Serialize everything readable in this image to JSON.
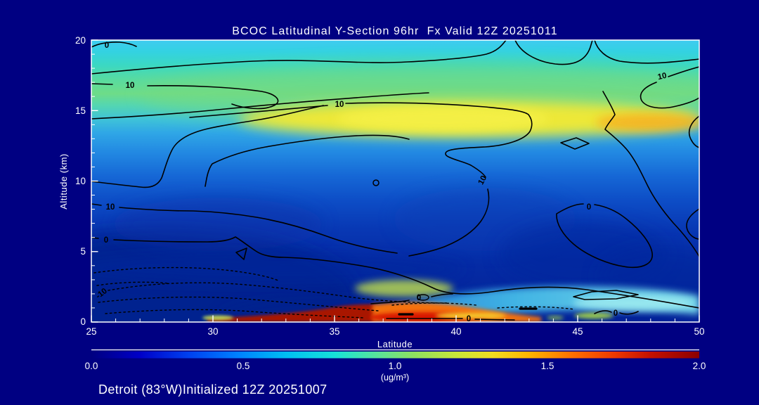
{
  "canvas": {
    "background_color": "#000082",
    "text_color": "#FFFFFF",
    "plot_frame_color": "#FFFFFF"
  },
  "header": {
    "title": "BCOC Latitudinal Y-Section 96hr  Fx Valid 12Z 20251011"
  },
  "footer": {
    "caption": "Detroit (83°W)Initialized 12Z 20251007"
  },
  "axes": {
    "x_label": "Latitude",
    "y_label": "Altitude (km)",
    "x_ticks": [
      "25",
      "30",
      "35",
      "40",
      "45",
      "50"
    ],
    "y_ticks": [
      "0",
      "5",
      "10",
      "15",
      "20"
    ]
  },
  "colorbar": {
    "tick_labels": [
      "0.0",
      "0.5",
      "1.0",
      "1.5",
      "2.0"
    ],
    "units_label": "(ug/m³)",
    "min": 0.0,
    "max": 2.0
  },
  "contour_labels": [
    "0",
    "10",
    "10",
    "10",
    "10",
    "10",
    "0",
    "-10",
    "0",
    "0",
    "0",
    "0"
  ],
  "chart_data": {
    "type": "heatmap",
    "title": "BCOC Latitudinal Y-Section 96hr  Fx Valid 12Z 20251011",
    "subtitle": "Detroit (83°W)Initialized 12Z 20251007",
    "xlabel": "Latitude",
    "ylabel": "Altitude (km)",
    "xlim": [
      25,
      50
    ],
    "ylim": [
      0,
      20
    ],
    "units": "ug/m³",
    "colorbar_range": [
      0.0,
      2.0
    ],
    "colorbar_ticks": [
      0.0,
      0.5,
      1.0,
      1.5,
      2.0
    ],
    "colormap": "blue-cyan-green-yellow-orange-red (jet-like)",
    "x": [
      25,
      30,
      35,
      40,
      45,
      50
    ],
    "y": [
      0,
      2.5,
      5,
      7.5,
      10,
      12.5,
      15,
      17.5,
      20
    ],
    "values_rows_low_to_high_altitude": [
      [
        0.1,
        0.6,
        2.0,
        1.9,
        0.8,
        1.5
      ],
      [
        0.15,
        0.22,
        0.25,
        0.22,
        0.3,
        0.3
      ],
      [
        0.22,
        0.28,
        0.3,
        0.28,
        0.25,
        0.22
      ],
      [
        0.3,
        0.35,
        0.35,
        0.35,
        0.3,
        0.28
      ],
      [
        0.35,
        0.45,
        0.5,
        0.45,
        0.4,
        0.35
      ],
      [
        0.55,
        0.6,
        0.7,
        0.75,
        0.6,
        0.55
      ],
      [
        0.9,
        1.0,
        1.1,
        1.3,
        1.3,
        1.4
      ],
      [
        0.85,
        0.95,
        1.0,
        1.0,
        0.95,
        1.0
      ],
      [
        0.7,
        0.72,
        0.75,
        0.72,
        0.7,
        0.72
      ]
    ],
    "overlay_contour_levels": [
      -10,
      0,
      10
    ],
    "overlay_contour_style": "black solid lines, negative values dashed",
    "notable_features": [
      "bright yellow band near 15 km altitude from latitude ~36 to 50",
      "thin dark-red surface plume (~2.0 ug/m3) from latitude ~30 to ~42",
      "elevated cyan layer below ~1.5 km from latitude ~38 to 50",
      "dashed negative contours in lower-left (lat 25-35, below 5 km)"
    ],
    "legend_position": "horizontal colorbar below x-axis",
    "grid": false
  }
}
